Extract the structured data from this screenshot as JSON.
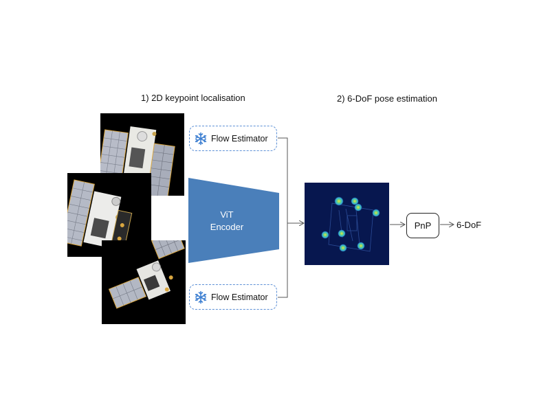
{
  "titles": {
    "stage1": "1) 2D keypoint localisation",
    "stage2": "2) 6-DoF pose estimation"
  },
  "flow_estimator_top": {
    "label": "Flow Estimator",
    "icon": "snowflake-icon"
  },
  "flow_estimator_bottom": {
    "label": "Flow Estimator",
    "icon": "snowflake-icon"
  },
  "encoder": {
    "line1": "ViT",
    "line2": "Encoder",
    "color": "#4a7fba"
  },
  "pnp": {
    "label": "PnP"
  },
  "output": {
    "label": "6-DoF"
  },
  "colors": {
    "dashed_border": "#5b8fd6",
    "heatmap_bg": "#07174f",
    "keypoint_hot": "#f4e03a",
    "keypoint_cold": "#2fa3e0"
  }
}
